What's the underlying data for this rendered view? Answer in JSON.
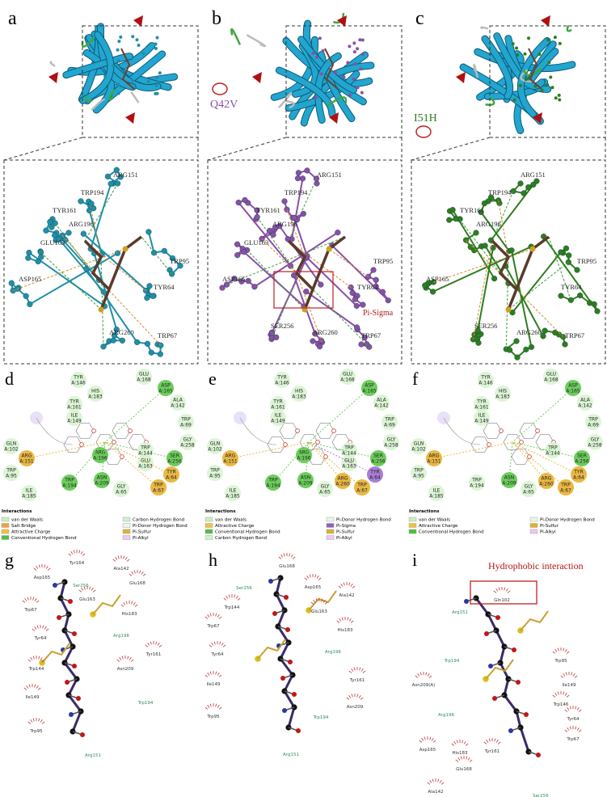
{
  "structure_panels": [
    {
      "letter": "a",
      "ball_color": "#1f8fa8",
      "residues": [
        "ARG151",
        "TRP194",
        "TYR161",
        "ARG196",
        "GLU163",
        "ASP165",
        "TRP95",
        "TYR64",
        "ARG260",
        "TRP67"
      ]
    },
    {
      "letter": "b",
      "ball_color": "#8a4fa8",
      "mutation": "Q42V",
      "annotation": "Pi-Sigma",
      "residues": [
        "ARG151",
        "TRP194",
        "TYR161",
        "ARG196",
        "GLU163",
        "TRP95",
        "ASP165",
        "TYR64",
        "SER256",
        "ARG260",
        "TRP67"
      ]
    },
    {
      "letter": "c",
      "ball_color": "#2e7d1e",
      "mutation": "I51H",
      "residues": [
        "ARG151",
        "TRP194",
        "TYR161",
        "ARG196",
        "TRP95",
        "ASP165",
        "TYR64",
        "SER256",
        "ARG260",
        "TRP67"
      ]
    }
  ],
  "interaction_panels": [
    {
      "letter": "d",
      "residues": [
        {
          "name": "TYR",
          "id": "A:146",
          "color": "#d8f4d0"
        },
        {
          "name": "GLU",
          "id": "A:168",
          "color": "#d8f4d0"
        },
        {
          "name": "ASP",
          "id": "A:165",
          "color": "#5cc84a"
        },
        {
          "name": "HIS",
          "id": "A:183",
          "color": "#d8f4d0"
        },
        {
          "name": "TYR",
          "id": "A:161",
          "color": "#d8f4d0"
        },
        {
          "name": "ILE",
          "id": "A:149",
          "color": "#d8f4d0"
        },
        {
          "name": "ALA",
          "id": "A:142",
          "color": "#d8f4d0"
        },
        {
          "name": "TRP",
          "id": "A:69",
          "color": "#d8f4d0"
        },
        {
          "name": "GLN",
          "id": "A:102",
          "color": "#d8f4d0"
        },
        {
          "name": "SER",
          "id": "A:256",
          "color": "#5cc84a"
        },
        {
          "name": "ARG",
          "id": "A:151",
          "color": "#e8b030"
        },
        {
          "name": "ARG",
          "id": "A:196",
          "color": "#5cc84a"
        },
        {
          "name": "TRP",
          "id": "A:144",
          "color": "#d8f4d0"
        },
        {
          "name": "GLU",
          "id": "A:163",
          "color": "#d8f4d0"
        },
        {
          "name": "GLY",
          "id": "A:258",
          "color": "#d8f4d0"
        },
        {
          "name": "TYR",
          "id": "A:64",
          "color": "#e8b030"
        },
        {
          "name": "TRP",
          "id": "A:95",
          "color": "#d8f4d0"
        },
        {
          "name": "TRP",
          "id": "A:194",
          "color": "#5cc84a"
        },
        {
          "name": "ASN",
          "id": "A:209",
          "color": "#5cc84a"
        },
        {
          "name": "TRP",
          "id": "A:67",
          "color": "#e8b030"
        },
        {
          "name": "ILE",
          "id": "A:185",
          "color": "#d8f4d0"
        },
        {
          "name": "GLY",
          "id": "A:65",
          "color": "#d8f4d0"
        }
      ],
      "legend_title": "Interactions",
      "legend": [
        {
          "label": "van der Waals",
          "color": "#c8f0c0"
        },
        {
          "label": "Salt Bridge",
          "color": "#f0a040"
        },
        {
          "label": "Attractive Charge",
          "color": "#f0c040"
        },
        {
          "label": "Conventional Hydrogen Bond",
          "color": "#50c040"
        },
        {
          "label": "Carbon Hydrogen Bond",
          "color": "#d0f0d0"
        },
        {
          "label": "Pi-Donor Hydrogen Bond",
          "color": "#e8f8e8"
        },
        {
          "label": "Pi-Sulfur",
          "color": "#e0b030"
        },
        {
          "label": "Pi-Alkyl",
          "color": "#f0c8f0"
        }
      ]
    },
    {
      "letter": "e",
      "residues": [
        {
          "name": "TYR",
          "id": "A:146",
          "color": "#d8f4d0"
        },
        {
          "name": "GLU",
          "id": "A:168",
          "color": "#d8f4d0"
        },
        {
          "name": "ASP",
          "id": "A:165",
          "color": "#5cc84a"
        },
        {
          "name": "HIS",
          "id": "A:183",
          "color": "#d8f4d0"
        },
        {
          "name": "TYR",
          "id": "A:161",
          "color": "#d8f4d0"
        },
        {
          "name": "ILE",
          "id": "A:149",
          "color": "#d8f4d0"
        },
        {
          "name": "TRP",
          "id": "A:69",
          "color": "#d8f4d0"
        },
        {
          "name": "GLN",
          "id": "A:102",
          "color": "#d8f4d0"
        },
        {
          "name": "ALA",
          "id": "A:142",
          "color": "#d8f4d0"
        },
        {
          "name": "ARG",
          "id": "A:151",
          "color": "#e8b030"
        },
        {
          "name": "ARG",
          "id": "A:196",
          "color": "#5cc84a"
        },
        {
          "name": "TRP",
          "id": "A:144",
          "color": "#d8f4d0"
        },
        {
          "name": "GLU",
          "id": "A:163",
          "color": "#d8f4d0"
        },
        {
          "name": "GLY",
          "id": "A:258",
          "color": "#d8f4d0"
        },
        {
          "name": "SER",
          "id": "A:256",
          "color": "#5cc84a"
        },
        {
          "name": "TRP",
          "id": "A:95",
          "color": "#d8f4d0"
        },
        {
          "name": "TRP",
          "id": "A:194",
          "color": "#5cc84a"
        },
        {
          "name": "ASN",
          "id": "A:209",
          "color": "#5cc84a"
        },
        {
          "name": "TYR",
          "id": "A:64",
          "color": "#a070d0"
        },
        {
          "name": "TRP",
          "id": "A:67",
          "color": "#e8b030"
        },
        {
          "name": "ILE",
          "id": "A:185",
          "color": "#d8f4d0"
        },
        {
          "name": "GLY",
          "id": "A:65",
          "color": "#d8f4d0"
        },
        {
          "name": "ARG",
          "id": "A:260",
          "color": "#e8b030"
        }
      ],
      "legend_title": "Interactions",
      "legend": [
        {
          "label": "van der Waals",
          "color": "#c8f0c0"
        },
        {
          "label": "Attractive Charge",
          "color": "#f0c040"
        },
        {
          "label": "Conventional Hydrogen Bond",
          "color": "#50c040"
        },
        {
          "label": "Carbon Hydrogen Bond",
          "color": "#d0f0d0"
        },
        {
          "label": "Pi-Donor Hydrogen Bond",
          "color": "#e8f8e8"
        },
        {
          "label": "Pi-Sigma",
          "color": "#9060c0"
        },
        {
          "label": "Pi-Sulfur",
          "color": "#e0b030"
        },
        {
          "label": "Pi-Alkyl",
          "color": "#f0c8f0"
        }
      ]
    },
    {
      "letter": "f",
      "residues": [
        {
          "name": "TYR",
          "id": "A:146",
          "color": "#d8f4d0"
        },
        {
          "name": "GLU",
          "id": "A:168",
          "color": "#d8f4d0"
        },
        {
          "name": "ASP",
          "id": "A:165",
          "color": "#5cc84a"
        },
        {
          "name": "HIS",
          "id": "A:183",
          "color": "#d8f4d0"
        },
        {
          "name": "TYR",
          "id": "A:161",
          "color": "#d8f4d0"
        },
        {
          "name": "ILE",
          "id": "A:149",
          "color": "#d8f4d0"
        },
        {
          "name": "TRP",
          "id": "A:69",
          "color": "#d8f4d0"
        },
        {
          "name": "ALA",
          "id": "A:142",
          "color": "#d8f4d0"
        },
        {
          "name": "GLN",
          "id": "A:102",
          "color": "#d8f4d0"
        },
        {
          "name": "TRP",
          "id": "A:144",
          "color": "#d8f4d0"
        },
        {
          "name": "GLY",
          "id": "A:258",
          "color": "#d8f4d0"
        },
        {
          "name": "ARG",
          "id": "A:151",
          "color": "#e8b030"
        },
        {
          "name": "SER",
          "id": "A:256",
          "color": "#5cc84a"
        },
        {
          "name": "TYR",
          "id": "A:64",
          "color": "#e8b030"
        },
        {
          "name": "TRP",
          "id": "A:95",
          "color": "#d8f4d0"
        },
        {
          "name": "GLY",
          "id": "A:65",
          "color": "#d8f4d0"
        },
        {
          "name": "ASN",
          "id": "A:209",
          "color": "#5cc84a"
        },
        {
          "name": "TRP",
          "id": "A:194",
          "color": "#d8f4d0"
        },
        {
          "name": "ILE",
          "id": "A:185",
          "color": "#d8f4d0"
        },
        {
          "name": "ARG",
          "id": "A:260",
          "color": "#e8b030"
        },
        {
          "name": "TRP",
          "id": "A:67",
          "color": "#e8b030"
        }
      ],
      "legend_title": "Interactions",
      "legend": [
        {
          "label": "van der Waals",
          "color": "#c8f0c0"
        },
        {
          "label": "Attractive Charge",
          "color": "#f0c040"
        },
        {
          "label": "Conventional Hydrogen Bond",
          "color": "#50c040"
        },
        {
          "label": "Pi-Donor Hydrogen Bond",
          "color": "#e8f8e8"
        },
        {
          "label": "Pi-Sulfur",
          "color": "#e0b030"
        },
        {
          "label": "Pi-Alkyl",
          "color": "#f0c8f0"
        }
      ]
    }
  ],
  "ligplot_panels": [
    {
      "letter": "g",
      "residues": [
        {
          "label": "Tyr164",
          "color": "#333333"
        },
        {
          "label": "Ala142",
          "color": "#333333"
        },
        {
          "label": "Asp165",
          "color": "#333333"
        },
        {
          "label": "Ser256",
          "color": "#2e8b57"
        },
        {
          "label": "Glu163",
          "color": "#333333"
        },
        {
          "label": "Glu168",
          "color": "#333333"
        },
        {
          "label": "Trp67",
          "color": "#333333"
        },
        {
          "label": "His183",
          "color": "#333333"
        },
        {
          "label": "Arg196",
          "color": "#2e8b57"
        },
        {
          "label": "Tyr64",
          "color": "#333333"
        },
        {
          "label": "Trp144",
          "color": "#333333"
        },
        {
          "label": "Tyr161",
          "color": "#333333"
        },
        {
          "label": "Asn209",
          "color": "#333333"
        },
        {
          "label": "Ile149",
          "color": "#333333"
        },
        {
          "label": "Trp194",
          "color": "#2e8b57"
        },
        {
          "label": "Trp95",
          "color": "#333333"
        },
        {
          "label": "Arg151",
          "color": "#2e8b57"
        }
      ]
    },
    {
      "letter": "h",
      "residues": [
        {
          "label": "Glu168",
          "color": "#333333"
        },
        {
          "label": "Ser256",
          "color": "#2e8b57"
        },
        {
          "label": "Asp165",
          "color": "#333333"
        },
        {
          "label": "Ala142",
          "color": "#333333"
        },
        {
          "label": "Trp144",
          "color": "#333333"
        },
        {
          "label": "Glu163",
          "color": "#333333"
        },
        {
          "label": "Trp67",
          "color": "#333333"
        },
        {
          "label": "His183",
          "color": "#333333"
        },
        {
          "label": "Tyr64",
          "color": "#333333"
        },
        {
          "label": "Arg196",
          "color": "#2e8b57"
        },
        {
          "label": "Ile149",
          "color": "#333333"
        },
        {
          "label": "Tyr161",
          "color": "#333333"
        },
        {
          "label": "Asn209",
          "color": "#333333"
        },
        {
          "label": "Trp95",
          "color": "#333333"
        },
        {
          "label": "Trp194",
          "color": "#2e8b57"
        },
        {
          "label": "Arg151",
          "color": "#2e8b57"
        }
      ]
    },
    {
      "letter": "i",
      "annotation": "Hydrophobic interaction",
      "residues": [
        {
          "label": "Gln102",
          "color": "#333333"
        },
        {
          "label": "Arg151",
          "color": "#2e8b57"
        },
        {
          "label": "Trp194",
          "color": "#2e8b57"
        },
        {
          "label": "Asn209(A)",
          "color": "#333333"
        },
        {
          "label": "Trp95",
          "color": "#333333"
        },
        {
          "label": "Ile149",
          "color": "#333333"
        },
        {
          "label": "Arg196",
          "color": "#2e8b57"
        },
        {
          "label": "Trp146",
          "color": "#333333"
        },
        {
          "label": "Tyr64",
          "color": "#333333"
        },
        {
          "label": "Trp67",
          "color": "#333333"
        },
        {
          "label": "Asp165",
          "color": "#333333"
        },
        {
          "label": "His183",
          "color": "#333333"
        },
        {
          "label": "Tyr161",
          "color": "#333333"
        },
        {
          "label": "Glu168",
          "color": "#333333"
        },
        {
          "label": "Ala142",
          "color": "#333333"
        },
        {
          "label": "Ser256",
          "color": "#2e8b57"
        }
      ]
    }
  ]
}
